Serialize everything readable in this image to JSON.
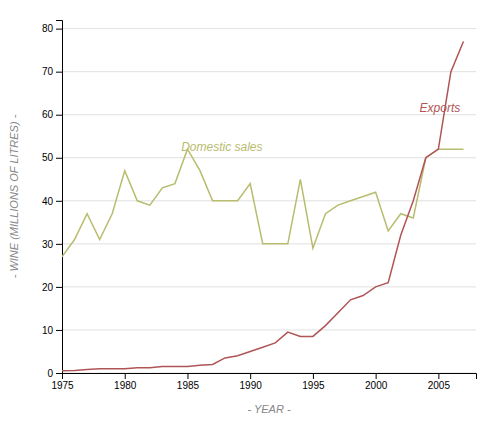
{
  "chart_data": {
    "type": "line",
    "x": [
      1975,
      1976,
      1977,
      1978,
      1979,
      1980,
      1981,
      1982,
      1983,
      1984,
      1985,
      1986,
      1987,
      1988,
      1989,
      1990,
      1991,
      1992,
      1993,
      1994,
      1995,
      1996,
      1997,
      1998,
      1999,
      2000,
      2001,
      2002,
      2003,
      2004,
      2005,
      2006,
      2007
    ],
    "series": [
      {
        "color": "#b8bc6e",
        "values": [
          27,
          31,
          37,
          31,
          37,
          47,
          40,
          39,
          43,
          44,
          52,
          47,
          40,
          40,
          40,
          44,
          30,
          30,
          30,
          45,
          29,
          37,
          39,
          40,
          41,
          42,
          33,
          37,
          36,
          50,
          52,
          52,
          52
        ]
      },
      {
        "color": "#b05555",
        "values": [
          0.5,
          0.6,
          0.8,
          1.0,
          1.0,
          1.0,
          1.2,
          1.2,
          1.5,
          1.5,
          1.5,
          1.8,
          2.0,
          3.5,
          4.0,
          5.0,
          6.0,
          7.0,
          9.5,
          8.5,
          8.5,
          11,
          14,
          17,
          18,
          20,
          21,
          32,
          40,
          50,
          52,
          70,
          77
        ]
      }
    ],
    "annotations": [
      {
        "text": "Domestic sales",
        "x": 1984.5,
        "y": 51,
        "color": "#b8bc6e"
      },
      {
        "text": "Exports",
        "x": 2003.5,
        "y": 60,
        "color": "#b05555"
      }
    ],
    "y_label": "- WINE (MILLIONS OF LITRES) -",
    "x_label": "- YEAR -",
    "xlim": [
      1975,
      2008
    ],
    "ylim": [
      0,
      82
    ],
    "xticks": [
      1975,
      1980,
      1985,
      1990,
      1995,
      2000,
      2005
    ],
    "yticks": [
      0,
      10,
      20,
      30,
      40,
      50,
      60,
      70,
      80
    ],
    "grid": true
  }
}
